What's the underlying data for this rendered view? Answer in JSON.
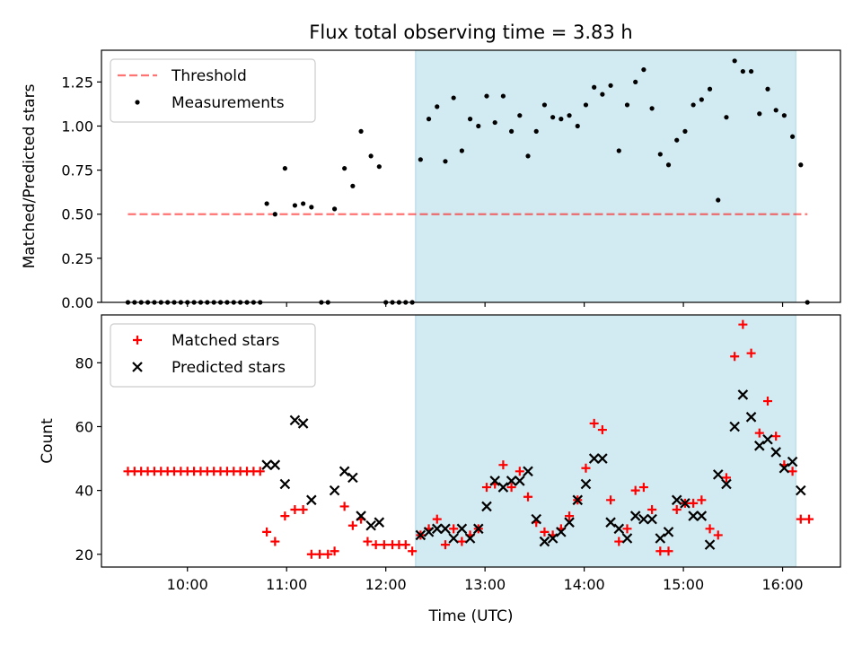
{
  "chart_data": {
    "title": "Flux total observing time = 3.83 h",
    "xlabel": "Time (UTC)",
    "x_ticks": [
      "10:00",
      "11:00",
      "12:00",
      "13:00",
      "14:00",
      "15:00",
      "16:00"
    ],
    "x_range": [
      "09:08",
      "16:35"
    ],
    "shaded_span": [
      "12:18",
      "16:08"
    ],
    "colors": {
      "shade": "#add8e6",
      "threshold": "#ff0000",
      "matched": "#ff0000",
      "predicted": "#000000",
      "measurements": "#000000"
    },
    "panels": [
      {
        "type": "scatter",
        "ylabel": "Matched/Predicted stars",
        "ylim": [
          0,
          1.43
        ],
        "y_ticks": [
          "0.00",
          "0.25",
          "0.50",
          "0.75",
          "1.00",
          "1.25"
        ],
        "legend": "top-left",
        "threshold": {
          "name": "Threshold",
          "y": 0.5,
          "x_range": [
            "09:24",
            "16:15"
          ]
        },
        "series": [
          {
            "name": "Measurements",
            "marker": "dot",
            "points": [
              [
                "09:24",
                0.0
              ],
              [
                "09:28",
                0.0
              ],
              [
                "09:32",
                0.0
              ],
              [
                "09:36",
                0.0
              ],
              [
                "09:40",
                0.0
              ],
              [
                "09:44",
                0.0
              ],
              [
                "09:48",
                0.0
              ],
              [
                "09:52",
                0.0
              ],
              [
                "09:56",
                0.0
              ],
              [
                "10:00",
                0.0
              ],
              [
                "10:04",
                0.0
              ],
              [
                "10:08",
                0.0
              ],
              [
                "10:12",
                0.0
              ],
              [
                "10:16",
                0.0
              ],
              [
                "10:20",
                0.0
              ],
              [
                "10:24",
                0.0
              ],
              [
                "10:28",
                0.0
              ],
              [
                "10:32",
                0.0
              ],
              [
                "10:36",
                0.0
              ],
              [
                "10:40",
                0.0
              ],
              [
                "10:44",
                0.0
              ],
              [
                "10:48",
                0.56
              ],
              [
                "10:53",
                0.5
              ],
              [
                "10:59",
                0.76
              ],
              [
                "11:05",
                0.55
              ],
              [
                "11:10",
                0.56
              ],
              [
                "11:15",
                0.54
              ],
              [
                "11:21",
                0.0
              ],
              [
                "11:25",
                0.0
              ],
              [
                "11:29",
                0.53
              ],
              [
                "11:35",
                0.76
              ],
              [
                "11:40",
                0.66
              ],
              [
                "11:45",
                0.97
              ],
              [
                "11:51",
                0.83
              ],
              [
                "11:56",
                0.77
              ],
              [
                "12:00",
                0.0
              ],
              [
                "12:04",
                0.0
              ],
              [
                "12:08",
                0.0
              ],
              [
                "12:12",
                0.0
              ],
              [
                "12:16",
                0.0
              ],
              [
                "12:21",
                0.81
              ],
              [
                "12:26",
                1.04
              ],
              [
                "12:31",
                1.11
              ],
              [
                "12:36",
                0.8
              ],
              [
                "12:41",
                1.16
              ],
              [
                "12:46",
                0.86
              ],
              [
                "12:51",
                1.04
              ],
              [
                "12:56",
                1.0
              ],
              [
                "13:01",
                1.17
              ],
              [
                "13:06",
                1.02
              ],
              [
                "13:11",
                1.17
              ],
              [
                "13:16",
                0.97
              ],
              [
                "13:21",
                1.06
              ],
              [
                "13:26",
                0.83
              ],
              [
                "13:31",
                0.97
              ],
              [
                "13:36",
                1.12
              ],
              [
                "13:41",
                1.05
              ],
              [
                "13:46",
                1.04
              ],
              [
                "13:51",
                1.06
              ],
              [
                "13:56",
                1.0
              ],
              [
                "14:01",
                1.12
              ],
              [
                "14:06",
                1.22
              ],
              [
                "14:11",
                1.18
              ],
              [
                "14:16",
                1.23
              ],
              [
                "14:21",
                0.86
              ],
              [
                "14:26",
                1.12
              ],
              [
                "14:31",
                1.25
              ],
              [
                "14:36",
                1.32
              ],
              [
                "14:41",
                1.1
              ],
              [
                "14:46",
                0.84
              ],
              [
                "14:51",
                0.78
              ],
              [
                "14:56",
                0.92
              ],
              [
                "15:01",
                0.97
              ],
              [
                "15:06",
                1.12
              ],
              [
                "15:11",
                1.15
              ],
              [
                "15:16",
                1.21
              ],
              [
                "15:21",
                0.58
              ],
              [
                "15:26",
                1.05
              ],
              [
                "15:31",
                1.37
              ],
              [
                "15:36",
                1.31
              ],
              [
                "15:41",
                1.31
              ],
              [
                "15:46",
                1.07
              ],
              [
                "15:51",
                1.21
              ],
              [
                "15:56",
                1.09
              ],
              [
                "16:01",
                1.06
              ],
              [
                "16:06",
                0.94
              ],
              [
                "16:11",
                0.78
              ],
              [
                "16:15",
                0.0
              ]
            ]
          }
        ]
      },
      {
        "type": "scatter",
        "ylabel": "Count",
        "ylim": [
          16,
          95
        ],
        "y_ticks": [
          "20",
          "40",
          "60",
          "80"
        ],
        "legend": "top-left",
        "series": [
          {
            "name": "Matched stars",
            "marker": "plus",
            "points": [
              [
                "09:24",
                46
              ],
              [
                "09:28",
                46
              ],
              [
                "09:32",
                46
              ],
              [
                "09:36",
                46
              ],
              [
                "09:40",
                46
              ],
              [
                "09:44",
                46
              ],
              [
                "09:48",
                46
              ],
              [
                "09:52",
                46
              ],
              [
                "09:56",
                46
              ],
              [
                "10:00",
                46
              ],
              [
                "10:04",
                46
              ],
              [
                "10:08",
                46
              ],
              [
                "10:12",
                46
              ],
              [
                "10:16",
                46
              ],
              [
                "10:20",
                46
              ],
              [
                "10:24",
                46
              ],
              [
                "10:28",
                46
              ],
              [
                "10:32",
                46
              ],
              [
                "10:36",
                46
              ],
              [
                "10:40",
                46
              ],
              [
                "10:44",
                46
              ],
              [
                "10:48",
                27
              ],
              [
                "10:53",
                24
              ],
              [
                "10:59",
                32
              ],
              [
                "11:05",
                34
              ],
              [
                "11:10",
                34
              ],
              [
                "11:15",
                20
              ],
              [
                "11:20",
                20
              ],
              [
                "11:25",
                20
              ],
              [
                "11:29",
                21
              ],
              [
                "11:35",
                35
              ],
              [
                "11:40",
                29
              ],
              [
                "11:45",
                31
              ],
              [
                "11:49",
                24
              ],
              [
                "11:54",
                23
              ],
              [
                "11:59",
                23
              ],
              [
                "12:04",
                23
              ],
              [
                "12:08",
                23
              ],
              [
                "12:12",
                23
              ],
              [
                "12:16",
                21
              ],
              [
                "12:21",
                26
              ],
              [
                "12:26",
                28
              ],
              [
                "12:31",
                31
              ],
              [
                "12:36",
                23
              ],
              [
                "12:41",
                28
              ],
              [
                "12:46",
                24
              ],
              [
                "12:51",
                26
              ],
              [
                "12:56",
                28
              ],
              [
                "13:01",
                41
              ],
              [
                "13:06",
                42
              ],
              [
                "13:11",
                48
              ],
              [
                "13:16",
                41
              ],
              [
                "13:21",
                46
              ],
              [
                "13:26",
                38
              ],
              [
                "13:31",
                30
              ],
              [
                "13:36",
                27
              ],
              [
                "13:41",
                26
              ],
              [
                "13:46",
                28
              ],
              [
                "13:51",
                32
              ],
              [
                "13:56",
                37
              ],
              [
                "14:01",
                47
              ],
              [
                "14:06",
                61
              ],
              [
                "14:11",
                59
              ],
              [
                "14:16",
                37
              ],
              [
                "14:21",
                24
              ],
              [
                "14:26",
                28
              ],
              [
                "14:31",
                40
              ],
              [
                "14:36",
                41
              ],
              [
                "14:41",
                34
              ],
              [
                "14:46",
                21
              ],
              [
                "14:51",
                21
              ],
              [
                "14:56",
                34
              ],
              [
                "15:01",
                36
              ],
              [
                "15:06",
                36
              ],
              [
                "15:11",
                37
              ],
              [
                "15:16",
                28
              ],
              [
                "15:21",
                26
              ],
              [
                "15:26",
                44
              ],
              [
                "15:31",
                82
              ],
              [
                "15:36",
                92
              ],
              [
                "15:41",
                83
              ],
              [
                "15:46",
                58
              ],
              [
                "15:51",
                68
              ],
              [
                "15:56",
                57
              ],
              [
                "16:01",
                48
              ],
              [
                "16:06",
                46
              ],
              [
                "16:11",
                31
              ],
              [
                "16:16",
                31
              ]
            ]
          },
          {
            "name": "Predicted stars",
            "marker": "x",
            "points": [
              [
                "10:48",
                48
              ],
              [
                "10:53",
                48
              ],
              [
                "10:59",
                42
              ],
              [
                "11:05",
                62
              ],
              [
                "11:10",
                61
              ],
              [
                "11:15",
                37
              ],
              [
                "11:29",
                40
              ],
              [
                "11:35",
                46
              ],
              [
                "11:40",
                44
              ],
              [
                "11:45",
                32
              ],
              [
                "11:51",
                29
              ],
              [
                "11:56",
                30
              ],
              [
                "12:21",
                26
              ],
              [
                "12:26",
                27
              ],
              [
                "12:31",
                28
              ],
              [
                "12:36",
                28
              ],
              [
                "12:41",
                25
              ],
              [
                "12:46",
                28
              ],
              [
                "12:51",
                25
              ],
              [
                "12:56",
                28
              ],
              [
                "13:01",
                35
              ],
              [
                "13:06",
                43
              ],
              [
                "13:11",
                41
              ],
              [
                "13:16",
                43
              ],
              [
                "13:21",
                43
              ],
              [
                "13:26",
                46
              ],
              [
                "13:31",
                31
              ],
              [
                "13:36",
                24
              ],
              [
                "13:41",
                25
              ],
              [
                "13:46",
                27
              ],
              [
                "13:51",
                30
              ],
              [
                "13:56",
                37
              ],
              [
                "14:01",
                42
              ],
              [
                "14:06",
                50
              ],
              [
                "14:11",
                50
              ],
              [
                "14:16",
                30
              ],
              [
                "14:21",
                28
              ],
              [
                "14:26",
                25
              ],
              [
                "14:31",
                32
              ],
              [
                "14:36",
                31
              ],
              [
                "14:41",
                31
              ],
              [
                "14:46",
                25
              ],
              [
                "14:51",
                27
              ],
              [
                "14:56",
                37
              ],
              [
                "15:01",
                36
              ],
              [
                "15:06",
                32
              ],
              [
                "15:11",
                32
              ],
              [
                "15:16",
                23
              ],
              [
                "15:21",
                45
              ],
              [
                "15:26",
                42
              ],
              [
                "15:31",
                60
              ],
              [
                "15:36",
                70
              ],
              [
                "15:41",
                63
              ],
              [
                "15:46",
                54
              ],
              [
                "15:51",
                56
              ],
              [
                "15:56",
                52
              ],
              [
                "16:01",
                47
              ],
              [
                "16:06",
                49
              ],
              [
                "16:11",
                40
              ]
            ]
          }
        ]
      }
    ]
  }
}
